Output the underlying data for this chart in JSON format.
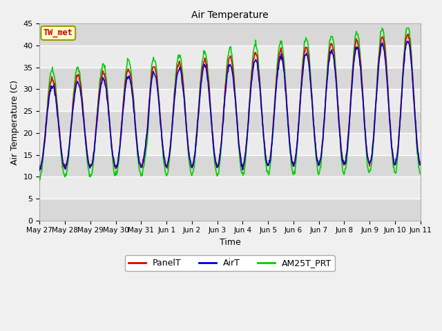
{
  "title": "Air Temperature",
  "xlabel": "Time",
  "ylabel": "Air Temperature (C)",
  "ylim": [
    0,
    45
  ],
  "yticks": [
    0,
    5,
    10,
    15,
    20,
    25,
    30,
    35,
    40,
    45
  ],
  "annotation": "TW_met",
  "annotation_color": "#cc0000",
  "annotation_bg": "#ffffcc",
  "annotation_border": "#999900",
  "legend_labels": [
    "PanelT",
    "AirT",
    "AM25T_PRT"
  ],
  "panel_color": "#dd0000",
  "air_color": "#0000cc",
  "am25t_color": "#00cc00",
  "line_width": 1.2,
  "bg_color_inner_light": "#ebebeb",
  "bg_color_inner_dark": "#d8d8d8",
  "bg_color_outer": "#f0f0f0",
  "xtick_labels": [
    "May 27",
    "May 28",
    "May 29",
    "May 30",
    "May 31",
    "Jun 1",
    "Jun 2",
    "Jun 3",
    "Jun 4",
    "Jun 5",
    "Jun 6",
    "Jun 7",
    "Jun 8",
    "Jun 9",
    "Jun 10",
    "Jun 11"
  ],
  "num_days": 15,
  "samples_per_day": 48
}
